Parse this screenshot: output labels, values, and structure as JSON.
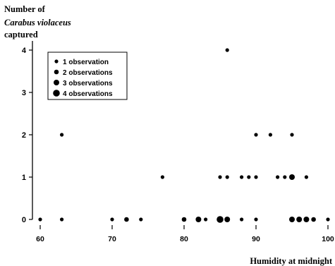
{
  "chart_data": {
    "type": "scatter",
    "title": "",
    "ylabel_lines": [
      "Number of",
      "Carabus violaceus",
      "captured"
    ],
    "xlabel": "Humidity at midnight",
    "xlim": [
      60,
      100
    ],
    "ylim": [
      0,
      4
    ],
    "xticks": [
      60,
      70,
      80,
      90,
      100
    ],
    "yticks": [
      0,
      1,
      2,
      3,
      4
    ],
    "grid": false,
    "legend_position": "top-left",
    "legend": [
      {
        "label": "1 observation",
        "count": 1
      },
      {
        "label": "2 observations",
        "count": 2
      },
      {
        "label": "3 observations",
        "count": 3
      },
      {
        "label": "4 observations",
        "count": 4
      }
    ],
    "points": [
      {
        "x": 60,
        "y": 0,
        "count": 1
      },
      {
        "x": 63,
        "y": 0,
        "count": 1
      },
      {
        "x": 70,
        "y": 0,
        "count": 1
      },
      {
        "x": 72,
        "y": 0,
        "count": 2
      },
      {
        "x": 74,
        "y": 0,
        "count": 1
      },
      {
        "x": 80,
        "y": 0,
        "count": 2
      },
      {
        "x": 82,
        "y": 0,
        "count": 3
      },
      {
        "x": 83,
        "y": 0,
        "count": 1
      },
      {
        "x": 85,
        "y": 0,
        "count": 4
      },
      {
        "x": 86,
        "y": 0,
        "count": 3
      },
      {
        "x": 88,
        "y": 0,
        "count": 1
      },
      {
        "x": 90,
        "y": 0,
        "count": 1
      },
      {
        "x": 95,
        "y": 0,
        "count": 3
      },
      {
        "x": 96,
        "y": 0,
        "count": 3
      },
      {
        "x": 97,
        "y": 0,
        "count": 3
      },
      {
        "x": 98,
        "y": 0,
        "count": 2
      },
      {
        "x": 100,
        "y": 0,
        "count": 1
      },
      {
        "x": 77,
        "y": 1,
        "count": 1
      },
      {
        "x": 85,
        "y": 1,
        "count": 1
      },
      {
        "x": 86,
        "y": 1,
        "count": 1
      },
      {
        "x": 88,
        "y": 1,
        "count": 1
      },
      {
        "x": 89,
        "y": 1,
        "count": 1
      },
      {
        "x": 90,
        "y": 1,
        "count": 1
      },
      {
        "x": 93,
        "y": 1,
        "count": 1
      },
      {
        "x": 94,
        "y": 1,
        "count": 1
      },
      {
        "x": 95,
        "y": 1,
        "count": 3
      },
      {
        "x": 97,
        "y": 1,
        "count": 1
      },
      {
        "x": 63,
        "y": 2,
        "count": 1
      },
      {
        "x": 90,
        "y": 2,
        "count": 1
      },
      {
        "x": 92,
        "y": 2,
        "count": 1
      },
      {
        "x": 95,
        "y": 2,
        "count": 1
      },
      {
        "x": 86,
        "y": 4,
        "count": 1
      }
    ]
  }
}
